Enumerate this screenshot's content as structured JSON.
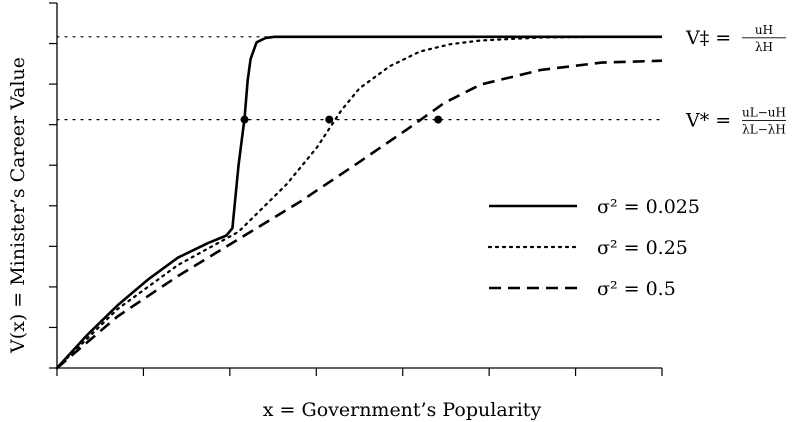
{
  "chart_data": {
    "type": "line",
    "xlabel": "x = Government’s Popularity",
    "ylabel": "V(x) = Minister’s Career Value",
    "xlim": [
      0,
      1
    ],
    "ylim": [
      0,
      1
    ],
    "tick_labels_shown": false,
    "grid": false,
    "legend_position": "center-right",
    "reference_lines": [
      {
        "name": "V-double-dagger",
        "label_main": "V‡ =",
        "label_num": "uH",
        "label_den": "λH",
        "y": 0.9,
        "style": "dotted"
      },
      {
        "name": "V-star",
        "label_main": "V* =",
        "label_num": "uL−uH",
        "label_den": "λL−λH",
        "y": 0.675,
        "style": "dotted"
      }
    ],
    "series": [
      {
        "name": "σ² = 0.025",
        "style": "solid",
        "x": [
          0,
          0.05,
          0.1,
          0.15,
          0.2,
          0.25,
          0.28,
          0.29,
          0.3,
          0.31,
          0.315,
          0.32,
          0.33,
          0.345,
          0.36,
          0.4,
          0.5,
          1.0
        ],
        "y": [
          0,
          0.09,
          0.17,
          0.24,
          0.3,
          0.34,
          0.36,
          0.38,
          0.55,
          0.68,
          0.78,
          0.84,
          0.885,
          0.897,
          0.9,
          0.9,
          0.9,
          0.9
        ]
      },
      {
        "name": "σ² = 0.25",
        "style": "dotted",
        "x": [
          0,
          0.1,
          0.2,
          0.3,
          0.38,
          0.43,
          0.47,
          0.5,
          0.55,
          0.6,
          0.65,
          0.7,
          0.8,
          0.9,
          1.0
        ],
        "y": [
          0,
          0.16,
          0.28,
          0.37,
          0.5,
          0.6,
          0.7,
          0.76,
          0.82,
          0.86,
          0.88,
          0.89,
          0.898,
          0.9,
          0.9
        ]
      },
      {
        "name": "σ² = 0.5",
        "style": "dashed",
        "x": [
          0,
          0.1,
          0.2,
          0.3,
          0.4,
          0.5,
          0.58,
          0.64,
          0.7,
          0.8,
          0.9,
          1.0
        ],
        "y": [
          0,
          0.14,
          0.25,
          0.35,
          0.45,
          0.56,
          0.65,
          0.72,
          0.77,
          0.81,
          0.83,
          0.835
        ]
      }
    ],
    "markers": [
      {
        "series": "σ² = 0.025",
        "x": 0.31,
        "y": 0.675
      },
      {
        "series": "σ² = 0.25",
        "x": 0.45,
        "y": 0.675
      },
      {
        "series": "σ² = 0.5",
        "x": 0.63,
        "y": 0.675
      }
    ],
    "legend": [
      {
        "label": "σ² = 0.025",
        "style": "solid"
      },
      {
        "label": "σ² = 0.25",
        "style": "dotted"
      },
      {
        "label": "σ² = 0.5",
        "style": "dashed"
      }
    ]
  }
}
